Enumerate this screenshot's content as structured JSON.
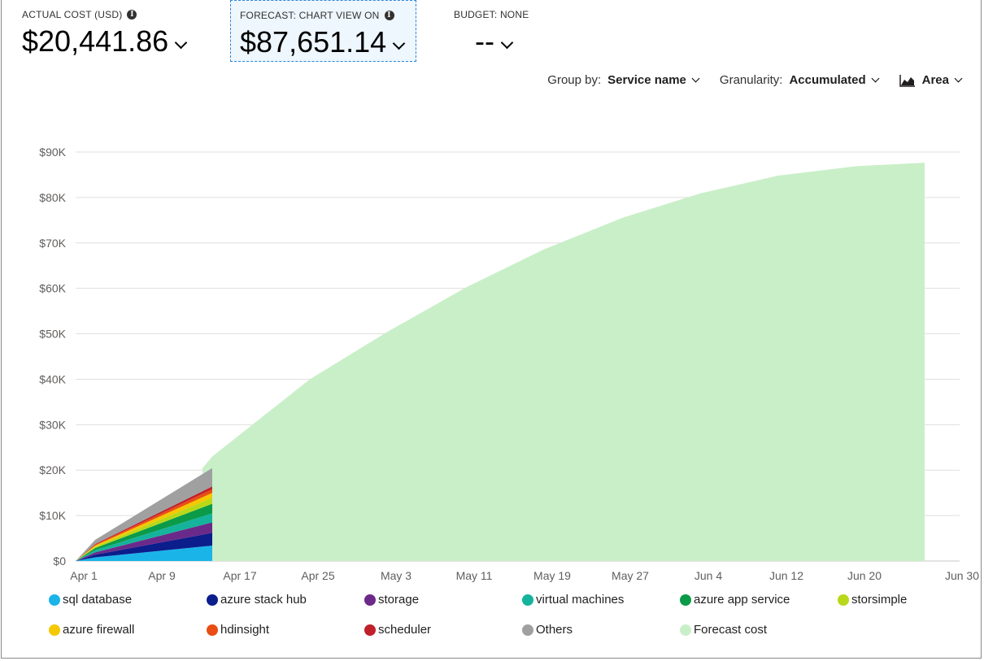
{
  "kpis": {
    "actual": {
      "label": "ACTUAL COST (USD)",
      "value": "$20,441.86"
    },
    "forecast": {
      "label": "FORECAST: CHART VIEW ON",
      "value": "$87,651.14"
    },
    "budget": {
      "label": "BUDGET: NONE",
      "value": "--"
    }
  },
  "toolbar": {
    "group_by_label": "Group by:",
    "group_by_value": "Service name",
    "granularity_label": "Granularity:",
    "granularity_value": "Accumulated",
    "view_value": "Area"
  },
  "chart_data": {
    "type": "area",
    "stacked": true,
    "y_ticks": [
      "$0",
      "$10K",
      "$20K",
      "$30K",
      "$40K",
      "$50K",
      "$60K",
      "$70K",
      "$80K",
      "$90K"
    ],
    "x_ticks": [
      "Apr 1",
      "Apr 9",
      "Apr 17",
      "Apr 25",
      "May 3",
      "May 11",
      "May 19",
      "May 27",
      "Jun 4",
      "Jun 12",
      "Jun 20",
      "Jun 30"
    ],
    "ylim": [
      0,
      90000
    ],
    "grid": true,
    "legend_position": "bottom",
    "actual": {
      "x": [
        "Apr 1",
        "Apr 3",
        "Apr 15"
      ],
      "series": [
        {
          "name": "sql database",
          "color": "#1bb4e8",
          "values": [
            0,
            800,
            3400
          ]
        },
        {
          "name": "azure stack hub",
          "color": "#0c1d8c",
          "values": [
            0,
            600,
            2800
          ]
        },
        {
          "name": "storage",
          "color": "#6b2a8a",
          "values": [
            0,
            500,
            2300
          ]
        },
        {
          "name": "virtual machines",
          "color": "#15b39b",
          "values": [
            0,
            500,
            2000
          ]
        },
        {
          "name": "azure app service",
          "color": "#0a9a48",
          "values": [
            0,
            450,
            2100
          ]
        },
        {
          "name": "storsimple",
          "color": "#b8d81a",
          "values": [
            0,
            300,
            1300
          ]
        },
        {
          "name": "azure firewall",
          "color": "#f5c800",
          "values": [
            0,
            250,
            1100
          ]
        },
        {
          "name": "hdinsight",
          "color": "#ea4d14",
          "values": [
            0,
            180,
            800
          ]
        },
        {
          "name": "scheduler",
          "color": "#c0202a",
          "values": [
            0,
            150,
            600
          ]
        },
        {
          "name": "Others",
          "color": "#a0a0a0",
          "values": [
            0,
            920,
            4042
          ]
        }
      ]
    },
    "forecast": {
      "name": "Forecast cost",
      "color": "#c9efc8",
      "x": [
        "Apr 14",
        "Apr 15",
        "Apr 25",
        "May 3",
        "May 11",
        "May 19",
        "May 27",
        "Jun 4",
        "Jun 12",
        "Jun 20",
        "Jun 27"
      ],
      "values": [
        20442,
        23000,
        40000,
        50500,
        60200,
        68600,
        75500,
        80900,
        84800,
        86900,
        87651
      ]
    }
  },
  "legend": [
    {
      "name": "sql database",
      "color": "#1bb4e8"
    },
    {
      "name": "azure stack hub",
      "color": "#0c1d8c"
    },
    {
      "name": "storage",
      "color": "#6b2a8a"
    },
    {
      "name": "virtual machines",
      "color": "#15b39b"
    },
    {
      "name": "azure app service",
      "color": "#0a9a48"
    },
    {
      "name": "storsimple",
      "color": "#b8d81a"
    },
    {
      "name": "azure firewall",
      "color": "#f5c800"
    },
    {
      "name": "hdinsight",
      "color": "#ea4d14"
    },
    {
      "name": "scheduler",
      "color": "#c0202a"
    },
    {
      "name": "Others",
      "color": "#a0a0a0"
    },
    {
      "name": "Forecast cost",
      "color": "#c9efc8"
    }
  ]
}
